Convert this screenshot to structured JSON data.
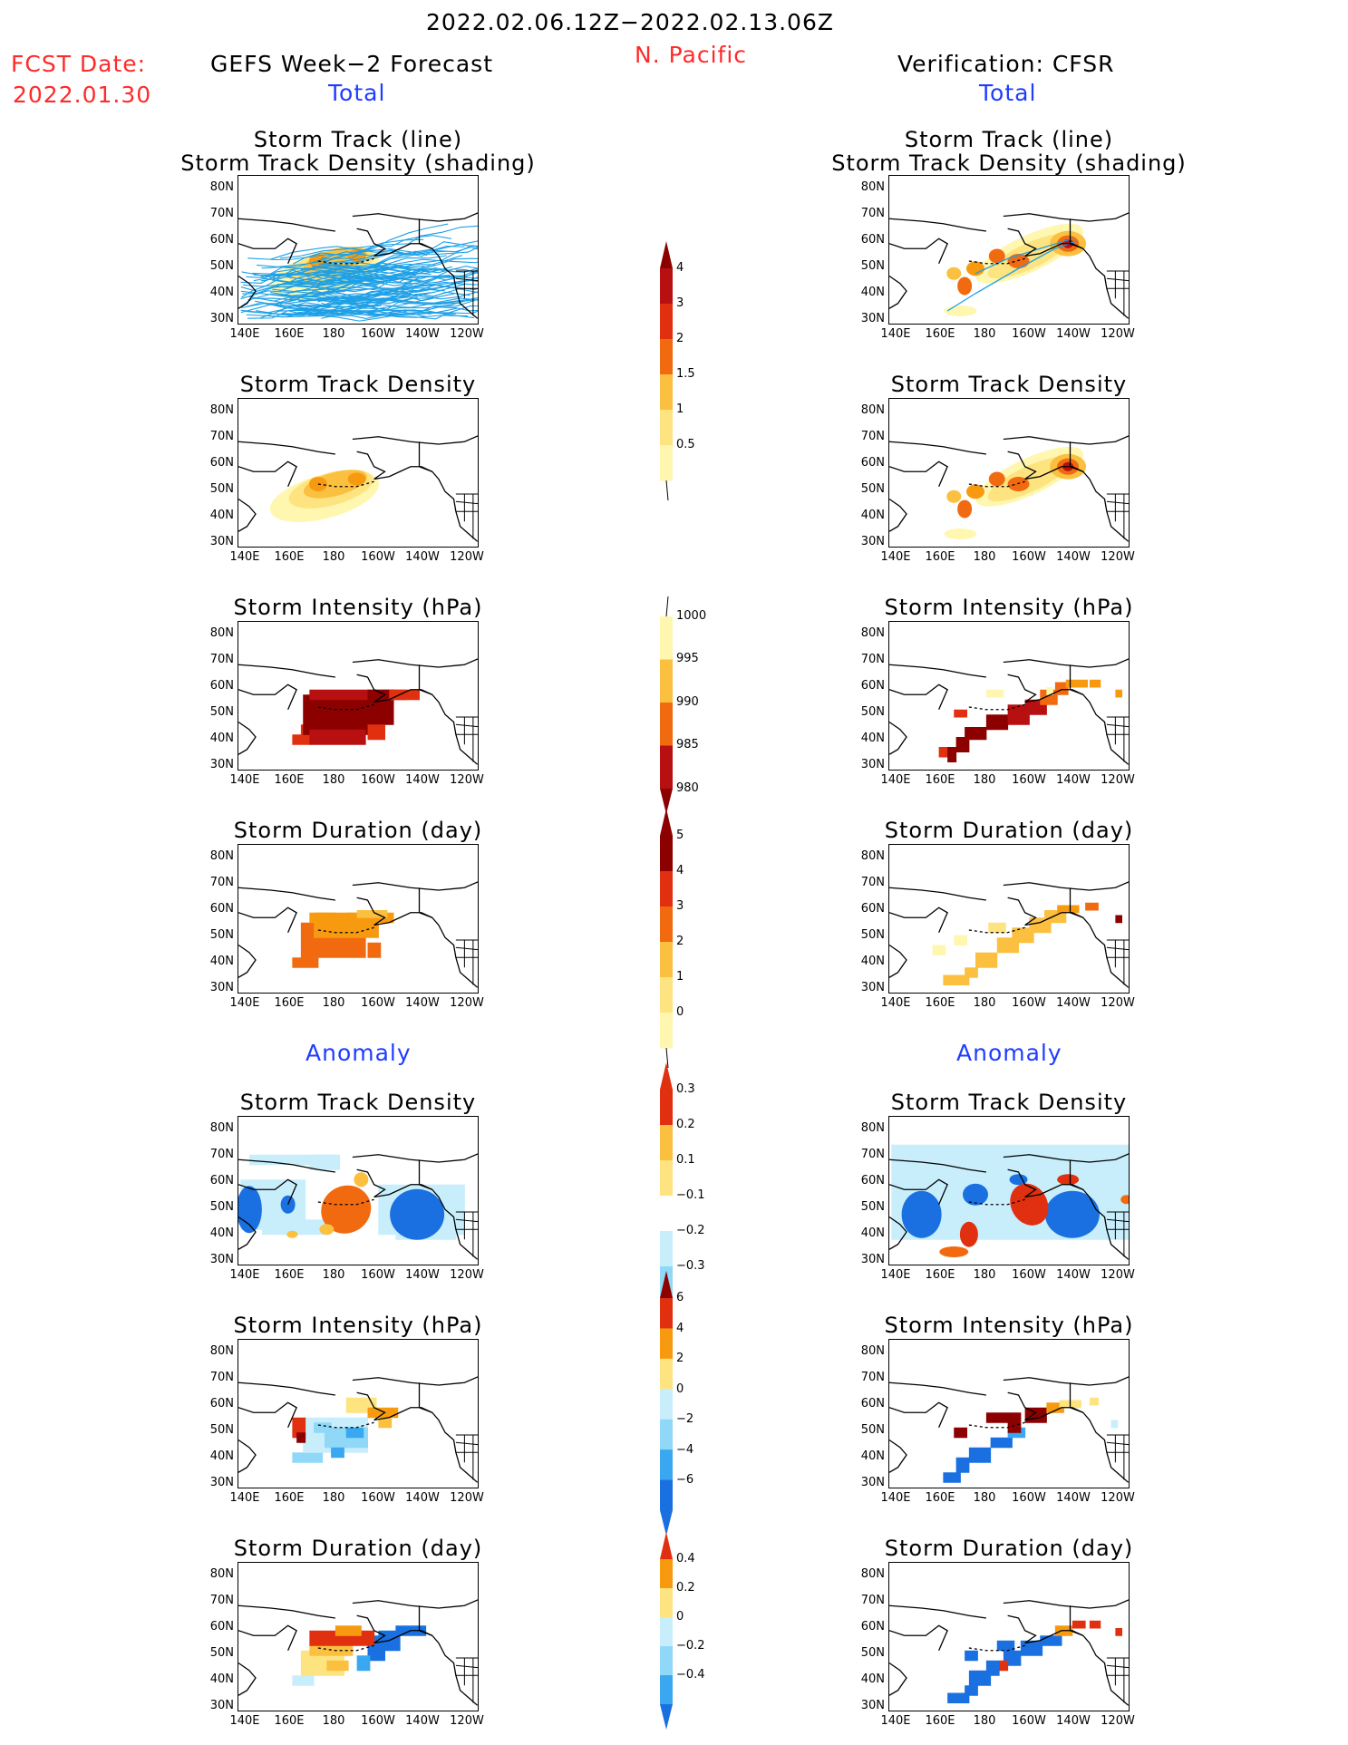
{
  "header": {
    "period": "2022.02.06.12Z−2022.02.13.06Z",
    "region": "N. Pacific",
    "fcst_label": "FCST Date:",
    "fcst_date": "2022.01.30",
    "left_title": "GEFS Week−2 Forecast",
    "right_title": "Verification: CFSR",
    "total_left": "Total",
    "total_right": "Total",
    "anomaly_left": "Anomaly",
    "anomaly_right": "Anomaly"
  },
  "panel_titles": {
    "track": [
      "Storm Track (line)",
      "Storm Track Density (shading)"
    ],
    "density": "Storm Track Density",
    "intensity": "Storm Intensity (hPa)",
    "duration": "Storm Duration (day)"
  },
  "axes": {
    "y_ticks": [
      "80N",
      "70N",
      "60N",
      "50N",
      "40N",
      "30N"
    ],
    "x_ticks": [
      "140E",
      "160E",
      "180",
      "160W",
      "140W",
      "120W"
    ]
  },
  "colorbars": {
    "density_total": [
      "4",
      "3",
      "2",
      "1.5",
      "1",
      "0.5"
    ],
    "intensity_total": [
      "1000",
      "995",
      "990",
      "985",
      "980"
    ],
    "duration_total": [
      "5",
      "4",
      "3",
      "2",
      "1",
      "0"
    ],
    "density_anom": [
      "0.3",
      "0.2",
      "0.1",
      "−0.1",
      "−0.2",
      "−0.3"
    ],
    "intensity_anom": [
      "6",
      "4",
      "2",
      "0",
      "−2",
      "−4",
      "−6"
    ],
    "duration_anom": [
      "0.4",
      "0.2",
      "0",
      "−0.2",
      "−0.4"
    ]
  },
  "colors": {
    "track_line": "#1ea0e6",
    "warm": [
      "#fff7b0",
      "#fde480",
      "#fbc040",
      "#f79a10",
      "#f26a10",
      "#e03010",
      "#b81010",
      "#8c0000"
    ],
    "cool": [
      "#c8eefc",
      "#8fd8f8",
      "#3aa8f0",
      "#1a70e0"
    ]
  }
}
